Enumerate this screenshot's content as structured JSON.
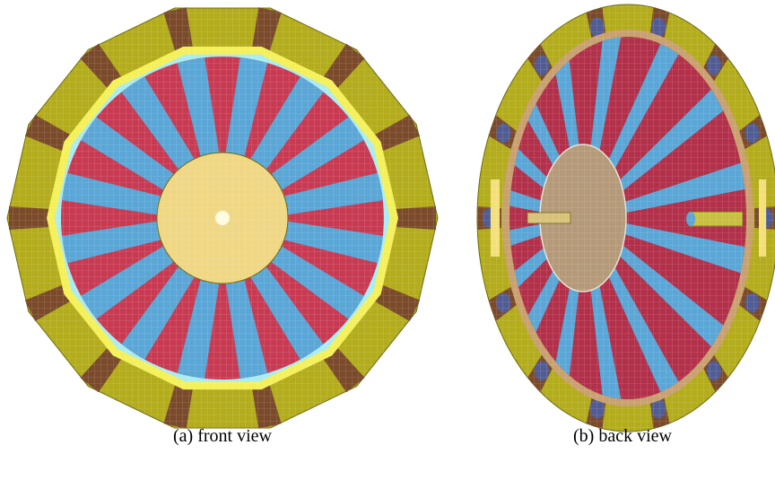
{
  "figures": [
    {
      "caption": "(a) front view"
    },
    {
      "caption": "(b) back view"
    }
  ]
}
